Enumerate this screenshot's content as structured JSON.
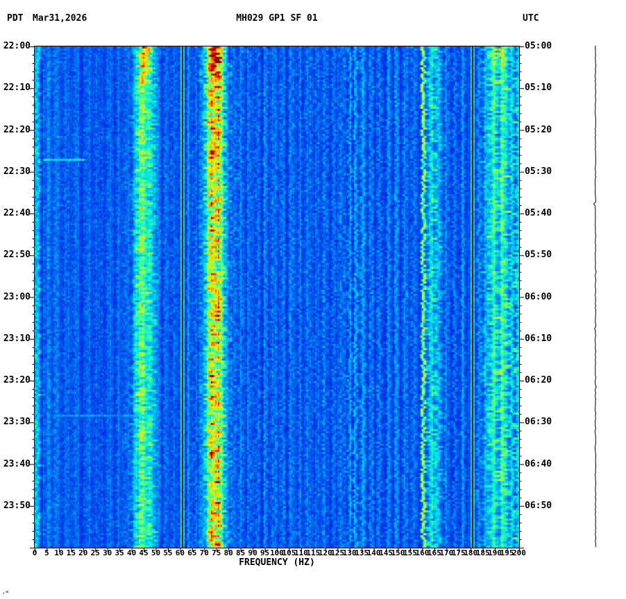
{
  "header": {
    "tz_left": "PDT",
    "date": "Mar31,2026",
    "title": "MH029 GP1 SF 01",
    "tz_right": "UTC"
  },
  "axes": {
    "left_times": [
      "22:00",
      "22:10",
      "22:20",
      "22:30",
      "22:40",
      "22:50",
      "23:00",
      "23:10",
      "23:20",
      "23:30",
      "23:40",
      "23:50"
    ],
    "right_times": [
      "05:00",
      "05:10",
      "05:20",
      "05:30",
      "05:40",
      "05:50",
      "06:00",
      "06:10",
      "06:20",
      "06:30",
      "06:40",
      "06:50"
    ],
    "freq_ticks": [
      "0",
      "5",
      "10",
      "15",
      "20",
      "25",
      "30",
      "35",
      "40",
      "45",
      "50",
      "55",
      "60",
      "65",
      "70",
      "75",
      "80",
      "85",
      "90",
      "95",
      "100",
      "105",
      "110",
      "115",
      "120",
      "125",
      "130",
      "135",
      "140",
      "145",
      "150",
      "155",
      "160",
      "165",
      "170",
      "175",
      "180",
      "185",
      "190",
      "195",
      "200"
    ],
    "xlabel": "FREQUENCY (HZ)"
  },
  "footer": {
    "corner_mark": ",«"
  },
  "chart_data": {
    "type": "heatmap",
    "title": "MH029 GP1 SF 01",
    "xlabel": "FREQUENCY (HZ)",
    "x_range_hz": [
      0,
      200
    ],
    "time_range_pdt": [
      "22:00",
      "24:00"
    ],
    "time_range_utc": [
      "05:00",
      "07:00"
    ],
    "time_tick_minutes": 10,
    "minor_tick_minutes": 2,
    "background_level": 0.27,
    "colormap": "jet",
    "colormap_stops": [
      [
        0,
        "#000080"
      ],
      [
        0.12,
        "#0000c8"
      ],
      [
        0.25,
        "#0030e8"
      ],
      [
        0.35,
        "#0070f0"
      ],
      [
        0.45,
        "#00b4f0"
      ],
      [
        0.52,
        "#00e8e8"
      ],
      [
        0.6,
        "#30ffa0"
      ],
      [
        0.68,
        "#a0ff40"
      ],
      [
        0.75,
        "#f0f000"
      ],
      [
        0.82,
        "#ffb000"
      ],
      [
        0.89,
        "#ff5000"
      ],
      [
        0.95,
        "#e01000"
      ],
      [
        1,
        "#800000"
      ]
    ],
    "bands": [
      {
        "c": 1.2,
        "s": 0.8,
        "i": 0.22
      },
      {
        "c": 5,
        "s": 0.9,
        "i": 0.1
      },
      {
        "c": 9,
        "s": 0.9,
        "i": 0.09
      },
      {
        "c": 13,
        "s": 0.9,
        "i": 0.08
      },
      {
        "c": 17.5,
        "s": 0.9,
        "i": 0.08
      },
      {
        "c": 22,
        "s": 0.9,
        "i": 0.07
      },
      {
        "c": 26.5,
        "s": 0.9,
        "i": 0.07
      },
      {
        "c": 31,
        "s": 0.9,
        "i": 0.07
      },
      {
        "c": 35,
        "s": 0.9,
        "i": 0.08
      },
      {
        "c": 38.5,
        "s": 0.8,
        "i": 0.1
      },
      {
        "c": 41.5,
        "s": 0.9,
        "i": 0.16
      },
      {
        "c": 43.5,
        "s": 1.1,
        "i": 0.22
      },
      {
        "c": 45.8,
        "s": 1.5,
        "i": 0.27,
        "boosts": [
          {
            "until": 0.1,
            "extra": 0.22
          },
          {
            "until": 0.5,
            "extra": 0.05
          }
        ]
      },
      {
        "c": 48.5,
        "s": 1.0,
        "i": 0.2
      },
      {
        "c": 51,
        "s": 0.6,
        "i": 0.1
      },
      {
        "c": 54,
        "s": 0.6,
        "i": 0.08
      },
      {
        "c": 57.5,
        "s": 0.6,
        "i": 0.09
      },
      {
        "c": 60.5,
        "s": 0.4,
        "i": 0.95,
        "sharp": true
      },
      {
        "c": 63.5,
        "s": 0.6,
        "i": 0.09
      },
      {
        "c": 66.5,
        "s": 0.6,
        "i": 0.1
      },
      {
        "c": 69.5,
        "s": 0.8,
        "i": 0.16
      },
      {
        "c": 72,
        "s": 1.0,
        "i": 0.28
      },
      {
        "c": 74.3,
        "s": 1.5,
        "i": 0.44,
        "boosts": [
          {
            "until": 0.3,
            "extra": 0.1
          },
          {
            "until": 0.07,
            "extra": 0.12
          }
        ]
      },
      {
        "c": 77,
        "s": 1.0,
        "i": 0.3,
        "boosts": [
          {
            "until": 0.3,
            "extra": 0.08
          }
        ]
      },
      {
        "c": 79.5,
        "s": 0.7,
        "i": 0.16
      },
      {
        "c": 82,
        "s": 0.6,
        "i": 0.12
      },
      {
        "c": 85,
        "s": 0.6,
        "i": 0.11
      },
      {
        "c": 88.5,
        "s": 0.6,
        "i": 0.1
      },
      {
        "c": 92,
        "s": 0.6,
        "i": 0.11
      },
      {
        "c": 95.5,
        "s": 0.6,
        "i": 0.12
      },
      {
        "c": 99,
        "s": 0.6,
        "i": 0.1
      },
      {
        "c": 102.5,
        "s": 0.6,
        "i": 0.11
      },
      {
        "c": 106,
        "s": 0.6,
        "i": 0.1
      },
      {
        "c": 109.5,
        "s": 0.6,
        "i": 0.11
      },
      {
        "c": 113,
        "s": 0.6,
        "i": 0.11
      },
      {
        "c": 116.5,
        "s": 0.6,
        "i": 0.1
      },
      {
        "c": 120,
        "s": 0.6,
        "i": 0.12
      },
      {
        "c": 123.5,
        "s": 0.6,
        "i": 0.1
      },
      {
        "c": 127,
        "s": 0.6,
        "i": 0.12
      },
      {
        "c": 130,
        "s": 0.5,
        "i": 0.16
      },
      {
        "c": 132.5,
        "s": 0.5,
        "i": 0.18
      },
      {
        "c": 135.5,
        "s": 0.7,
        "i": 0.15
      },
      {
        "c": 139,
        "s": 0.6,
        "i": 0.12
      },
      {
        "c": 142.5,
        "s": 0.6,
        "i": 0.13
      },
      {
        "c": 146,
        "s": 0.6,
        "i": 0.11
      },
      {
        "c": 149.5,
        "s": 0.6,
        "i": 0.12
      },
      {
        "c": 153,
        "s": 0.6,
        "i": 0.11
      },
      {
        "c": 156.5,
        "s": 0.6,
        "i": 0.12
      },
      {
        "c": 160.5,
        "s": 0.5,
        "i": 0.42
      },
      {
        "c": 163.5,
        "s": 1.0,
        "i": 0.28
      },
      {
        "c": 166.5,
        "s": 0.9,
        "i": 0.24
      },
      {
        "c": 170,
        "s": 0.6,
        "i": 0.12
      },
      {
        "c": 173.5,
        "s": 0.6,
        "i": 0.13
      },
      {
        "c": 177,
        "s": 0.6,
        "i": 0.11
      },
      {
        "c": 180.6,
        "s": 0.4,
        "i": 0.95,
        "sharp": true
      },
      {
        "c": 183.5,
        "s": 0.6,
        "i": 0.15
      },
      {
        "c": 186.5,
        "s": 0.8,
        "i": 0.2
      },
      {
        "c": 189.5,
        "s": 1.2,
        "i": 0.3,
        "boosts": [
          {
            "until": 0.12,
            "extra": 0.1
          }
        ]
      },
      {
        "c": 193.5,
        "s": 1.3,
        "i": 0.34,
        "boosts": [
          {
            "until": 0.12,
            "extra": 0.12
          }
        ]
      },
      {
        "c": 197,
        "s": 0.8,
        "i": 0.24
      },
      {
        "c": 199.5,
        "s": 0.6,
        "i": 0.26
      }
    ],
    "events": [
      {
        "time_frac": 0.225,
        "f1": 3.5,
        "f2": 20,
        "intensity": 0.52
      },
      {
        "time_frac": 0.733,
        "f1": 8,
        "f2": 40,
        "intensity": 0.4
      }
    ]
  }
}
